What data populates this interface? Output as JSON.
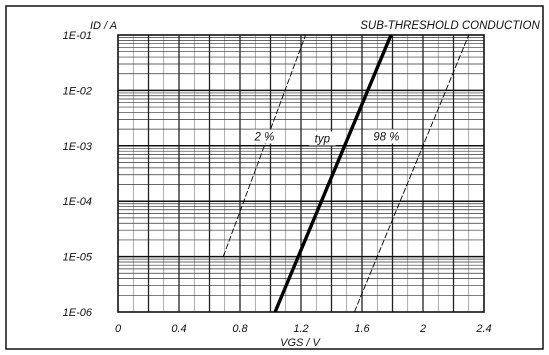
{
  "chart_data": {
    "type": "line",
    "title": "SUB-THRESHOLD CONDUCTION",
    "xlabel": "VGS / V",
    "ylabel": "ID / A",
    "x_scale": "linear",
    "y_scale": "log",
    "xlim": [
      0,
      2.4
    ],
    "ylim": [
      1e-06,
      0.1
    ],
    "x_ticks": [
      0,
      0.4,
      0.8,
      1.2,
      1.6,
      2,
      2.4
    ],
    "x_tick_labels": [
      "0",
      "0.4",
      "0.8",
      "1.2",
      "1.6",
      "2",
      "2.4"
    ],
    "y_ticks": [
      1e-06,
      1e-05,
      0.0001,
      0.001,
      0.01,
      0.1
    ],
    "y_tick_labels": [
      "1E-06",
      "1E-05",
      "1E-04",
      "1E-03",
      "1E-02",
      "1E-01"
    ],
    "grid": true,
    "series": [
      {
        "name": "2 %",
        "style": "dashed-thin",
        "x": [
          0.69,
          1.23
        ],
        "y": [
          1e-05,
          0.1
        ]
      },
      {
        "name": "typ",
        "style": "solid-thick",
        "x": [
          1.03,
          1.79
        ],
        "y": [
          1e-06,
          0.1
        ]
      },
      {
        "name": "98 %",
        "style": "dashed-thin",
        "x": [
          1.55,
          2.3
        ],
        "y": [
          1e-06,
          0.1
        ]
      }
    ],
    "annotations": [
      {
        "text": "2 %",
        "x": 0.96,
        "y": 0.00125
      },
      {
        "text": "typ",
        "x": 1.34,
        "y": 0.00115
      },
      {
        "text": "98 %",
        "x": 1.76,
        "y": 0.00125
      }
    ]
  }
}
